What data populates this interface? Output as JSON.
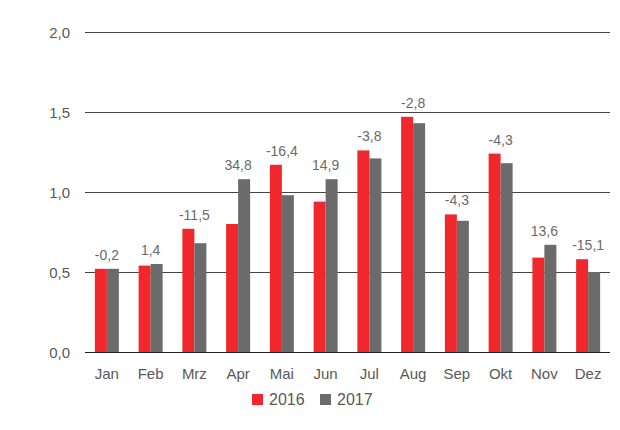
{
  "chart_data": {
    "type": "bar",
    "categories": [
      "Jan",
      "Feb",
      "Mrz",
      "Apr",
      "Mai",
      "Jun",
      "Jul",
      "Aug",
      "Sep",
      "Okt",
      "Nov",
      "Dez"
    ],
    "series": [
      {
        "name": "2016",
        "color": "#f0282d",
        "values": [
          0.52,
          0.54,
          0.77,
          0.8,
          1.17,
          0.94,
          1.26,
          1.47,
          0.86,
          1.24,
          0.59,
          0.58
        ]
      },
      {
        "name": "2017",
        "color": "#6b6b6b",
        "values": [
          0.52,
          0.55,
          0.68,
          1.08,
          0.98,
          1.08,
          1.21,
          1.43,
          0.82,
          1.18,
          0.67,
          0.5
        ]
      }
    ],
    "annotations": [
      "-0,2",
      "1,4",
      "-11,5",
      "34,8",
      "-16,4",
      "14,9",
      "-3,8",
      "-2,8",
      "-4,3",
      "-4,3",
      "13,6",
      "-15,1"
    ],
    "ylim": [
      0,
      2
    ],
    "yticks": [
      {
        "value": 0,
        "label": "0,0"
      },
      {
        "value": 0.5,
        "label": "0,5"
      },
      {
        "value": 1,
        "label": "1,0"
      },
      {
        "value": 1.5,
        "label": "1,5"
      },
      {
        "value": 2,
        "label": "2,0"
      }
    ],
    "grid": true,
    "legend": "bottom"
  }
}
